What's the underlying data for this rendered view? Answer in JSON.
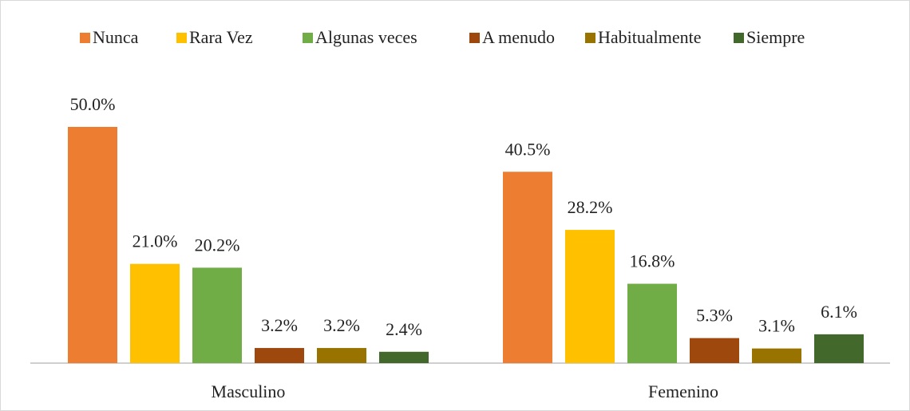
{
  "chart_data": {
    "type": "bar",
    "categories": [
      "Masculino",
      "Femenino"
    ],
    "series": [
      {
        "name": "Nunca",
        "color": "#ED7D31",
        "values": [
          50.0,
          40.5
        ],
        "value_labels": [
          "50.0%",
          "40.5%"
        ]
      },
      {
        "name": "Rara Vez",
        "color": "#FFC000",
        "values": [
          21.0,
          28.2
        ],
        "value_labels": [
          "21.0%",
          "28.2%"
        ]
      },
      {
        "name": "Algunas veces",
        "color": "#70AD47",
        "values": [
          20.2,
          16.8
        ],
        "value_labels": [
          "20.2%",
          "16.8%"
        ]
      },
      {
        "name": "A menudo",
        "color": "#9E480E",
        "values": [
          3.2,
          5.3
        ],
        "value_labels": [
          "3.2%",
          "5.3%"
        ]
      },
      {
        "name": "Habitualmente",
        "color": "#997300",
        "values": [
          3.2,
          3.1
        ],
        "value_labels": [
          "3.2%",
          "3.1%"
        ]
      },
      {
        "name": "Siempre",
        "color": "#43682B",
        "values": [
          2.4,
          6.1
        ],
        "value_labels": [
          "2.4%",
          "6.1%"
        ]
      }
    ],
    "legend": "top"
  }
}
